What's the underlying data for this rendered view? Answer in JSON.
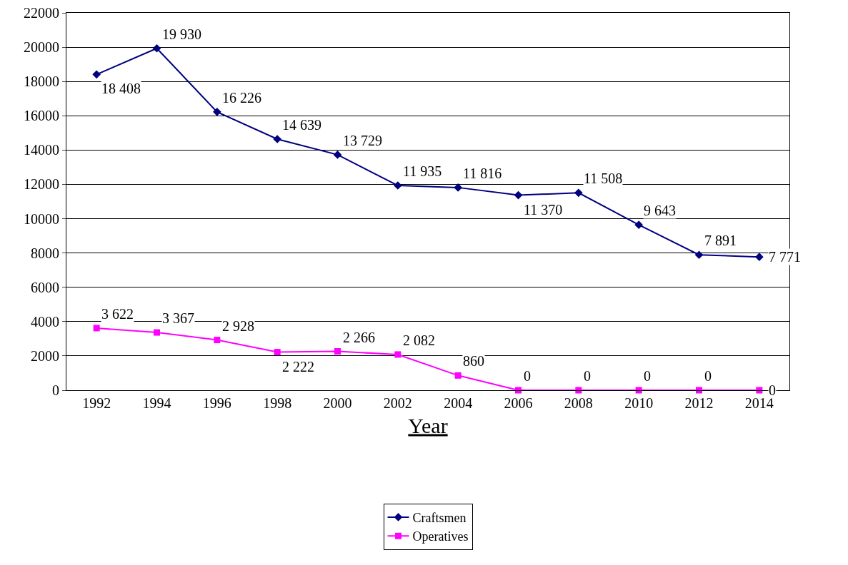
{
  "chart_data": {
    "type": "line",
    "xlabel": "Year",
    "categories": [
      "1992",
      "1994",
      "1996",
      "1998",
      "2000",
      "2002",
      "2004",
      "2006",
      "2008",
      "2010",
      "2012",
      "2014"
    ],
    "series": [
      {
        "name": "Craftsmen",
        "color": "#000080",
        "marker": "diamond",
        "values": [
          18408,
          19930,
          16226,
          14639,
          13729,
          11935,
          11816,
          11370,
          11508,
          9643,
          7891,
          7771
        ],
        "value_labels": [
          "18 408",
          "19 930",
          "16 226",
          "14 639",
          "13 729",
          "11 935",
          "11 816",
          "11 370",
          "11 508",
          "9 643",
          "7 891",
          "7 771"
        ]
      },
      {
        "name": "Operatives",
        "color": "#ff00ff",
        "marker": "square",
        "values": [
          3622,
          3367,
          2928,
          2222,
          2266,
          2082,
          860,
          0,
          0,
          0,
          0,
          0
        ],
        "value_labels": [
          "3 622",
          "3 367",
          "2 928",
          "2 222",
          "2 266",
          "2 082",
          "860",
          "0",
          "0",
          "0",
          "0",
          "0"
        ]
      }
    ],
    "ylim": [
      0,
      22000
    ],
    "yticks": [
      0,
      2000,
      4000,
      6000,
      8000,
      10000,
      12000,
      14000,
      16000,
      18000,
      20000,
      22000
    ],
    "grid": "y",
    "legend": "bottom",
    "line_style": "solid"
  }
}
